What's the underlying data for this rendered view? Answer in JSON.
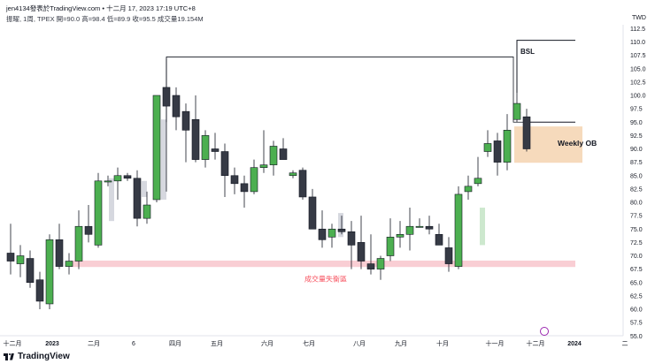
{
  "header": {
    "line1": "jen4134發表於TradingView.com • 十二月 17, 2023 17:19 UTC+8",
    "line2": "振曜, 1周, TPEX  開=90.0  高=98.4  低=89.9  收=95.5  成交量19.154M"
  },
  "footer": {
    "brand": "TradingView"
  },
  "chart_data": {
    "type": "candlestick",
    "timeframe": "1周",
    "exchange": "TPEX",
    "ohlc_readout": {
      "open": 90.0,
      "high": 98.4,
      "low": 89.9,
      "close": 95.5,
      "volume": "19.154M"
    },
    "currency": "TWD",
    "ylim": [
      54.5,
      114
    ],
    "y_ticks": [
      55.0,
      57.5,
      60.0,
      62.5,
      65.0,
      67.5,
      70.0,
      72.5,
      75.0,
      77.5,
      80.0,
      82.5,
      85.0,
      87.5,
      90.0,
      92.5,
      95.0,
      97.5,
      100.0,
      102.5,
      105.0,
      107.5,
      110.0,
      112.5
    ],
    "x_labels": [
      "十二月",
      "2023",
      "二月",
      "6",
      "四月",
      "五月",
      "六月",
      "七月",
      "八月",
      "九月",
      "十月",
      "十一月",
      "十二月",
      "2024",
      "二"
    ],
    "candles": [
      {
        "o": 70.5,
        "h": 76.0,
        "l": 66.5,
        "c": 69.0
      },
      {
        "o": 68.5,
        "h": 72.0,
        "l": 66.0,
        "c": 70.0
      },
      {
        "o": 69.5,
        "h": 71.0,
        "l": 64.0,
        "c": 65.0
      },
      {
        "o": 65.5,
        "h": 67.0,
        "l": 60.0,
        "c": 61.5
      },
      {
        "o": 61.0,
        "h": 74.0,
        "l": 60.0,
        "c": 73.0
      },
      {
        "o": 73.0,
        "h": 76.0,
        "l": 67.5,
        "c": 68.0
      },
      {
        "o": 68.0,
        "h": 70.5,
        "l": 66.5,
        "c": 69.0
      },
      {
        "o": 69.0,
        "h": 78.5,
        "l": 67.5,
        "c": 75.5
      },
      {
        "o": 75.5,
        "h": 79.5,
        "l": 72.5,
        "c": 74.0
      },
      {
        "o": 72.0,
        "h": 85.5,
        "l": 71.5,
        "c": 84.0
      },
      {
        "o": 84.0,
        "h": 85.0,
        "l": 83.0,
        "c": 84.0
      },
      {
        "o": 84.0,
        "h": 86.5,
        "l": 80.5,
        "c": 85.0
      },
      {
        "o": 85.0,
        "h": 85.5,
        "l": 84.0,
        "c": 84.5
      },
      {
        "o": 84.5,
        "h": 86.0,
        "l": 75.5,
        "c": 77.0
      },
      {
        "o": 77.0,
        "h": 82.0,
        "l": 76.0,
        "c": 79.5
      },
      {
        "o": 80.5,
        "h": 100.0,
        "l": 80.0,
        "c": 100.0
      },
      {
        "o": 101.5,
        "h": 107.0,
        "l": 95.0,
        "c": 98.0
      },
      {
        "o": 100.0,
        "h": 101.5,
        "l": 93.5,
        "c": 96.0
      },
      {
        "o": 97.0,
        "h": 98.5,
        "l": 87.5,
        "c": 93.5
      },
      {
        "o": 95.5,
        "h": 100.0,
        "l": 87.5,
        "c": 88.0
      },
      {
        "o": 88.0,
        "h": 93.5,
        "l": 86.5,
        "c": 92.5
      },
      {
        "o": 90.0,
        "h": 93.0,
        "l": 88.0,
        "c": 89.5
      },
      {
        "o": 89.5,
        "h": 91.0,
        "l": 81.0,
        "c": 85.0
      },
      {
        "o": 85.0,
        "h": 86.5,
        "l": 81.5,
        "c": 83.5
      },
      {
        "o": 83.5,
        "h": 85.0,
        "l": 79.0,
        "c": 82.0
      },
      {
        "o": 82.0,
        "h": 88.0,
        "l": 81.5,
        "c": 86.5
      },
      {
        "o": 86.5,
        "h": 93.5,
        "l": 85.5,
        "c": 87.0
      },
      {
        "o": 87.0,
        "h": 91.5,
        "l": 85.0,
        "c": 90.5
      },
      {
        "o": 90.0,
        "h": 92.0,
        "l": 88.5,
        "c": 88.0
      },
      {
        "o": 85.0,
        "h": 86.0,
        "l": 84.5,
        "c": 85.5
      },
      {
        "o": 86.0,
        "h": 86.5,
        "l": 80.5,
        "c": 81.0
      },
      {
        "o": 81.0,
        "h": 82.5,
        "l": 75.0,
        "c": 75.0
      },
      {
        "o": 75.0,
        "h": 78.5,
        "l": 71.5,
        "c": 73.0
      },
      {
        "o": 73.5,
        "h": 76.0,
        "l": 71.5,
        "c": 75.0
      },
      {
        "o": 75.0,
        "h": 77.5,
        "l": 74.0,
        "c": 74.5
      },
      {
        "o": 74.5,
        "h": 76.5,
        "l": 67.5,
        "c": 72.0
      },
      {
        "o": 72.5,
        "h": 77.5,
        "l": 67.5,
        "c": 69.0
      },
      {
        "o": 68.5,
        "h": 74.0,
        "l": 66.5,
        "c": 67.5
      },
      {
        "o": 67.5,
        "h": 70.0,
        "l": 65.5,
        "c": 69.5
      },
      {
        "o": 70.0,
        "h": 77.0,
        "l": 69.0,
        "c": 73.5
      },
      {
        "o": 73.5,
        "h": 76.5,
        "l": 71.5,
        "c": 74.0
      },
      {
        "o": 74.0,
        "h": 79.0,
        "l": 71.0,
        "c": 75.5
      },
      {
        "o": 75.5,
        "h": 77.0,
        "l": 75.5,
        "c": 75.5
      },
      {
        "o": 75.5,
        "h": 77.5,
        "l": 74.0,
        "c": 75.0
      },
      {
        "o": 74.0,
        "h": 76.0,
        "l": 72.5,
        "c": 72.0
      },
      {
        "o": 71.5,
        "h": 73.5,
        "l": 67.0,
        "c": 68.5
      },
      {
        "o": 68.0,
        "h": 83.0,
        "l": 67.5,
        "c": 81.5
      },
      {
        "o": 82.0,
        "h": 85.0,
        "l": 80.5,
        "c": 83.0
      },
      {
        "o": 83.5,
        "h": 88.5,
        "l": 83.0,
        "c": 84.5
      },
      {
        "o": 89.5,
        "h": 93.5,
        "l": 88.5,
        "c": 91.0
      },
      {
        "o": 91.5,
        "h": 93.0,
        "l": 85.0,
        "c": 87.5
      },
      {
        "o": 87.5,
        "h": 96.5,
        "l": 86.0,
        "c": 93.5
      },
      {
        "o": 95.5,
        "h": 100.5,
        "l": 95.0,
        "c": 98.5
      },
      {
        "o": 96.0,
        "h": 97.5,
        "l": 89.5,
        "c": 90.0
      }
    ],
    "annotations": [
      {
        "label": "BSL",
        "kind": "level"
      },
      {
        "label": "Weekly OB",
        "kind": "zone"
      },
      {
        "label": "成交量失衡區",
        "kind": "zone"
      }
    ],
    "colors": {
      "up": "#4caf50",
      "down": "#363a45",
      "ob_zone": "#f5d3b0",
      "imbalance_zone": "#f8c9cf",
      "imbalance_text": "#f7525f"
    }
  }
}
